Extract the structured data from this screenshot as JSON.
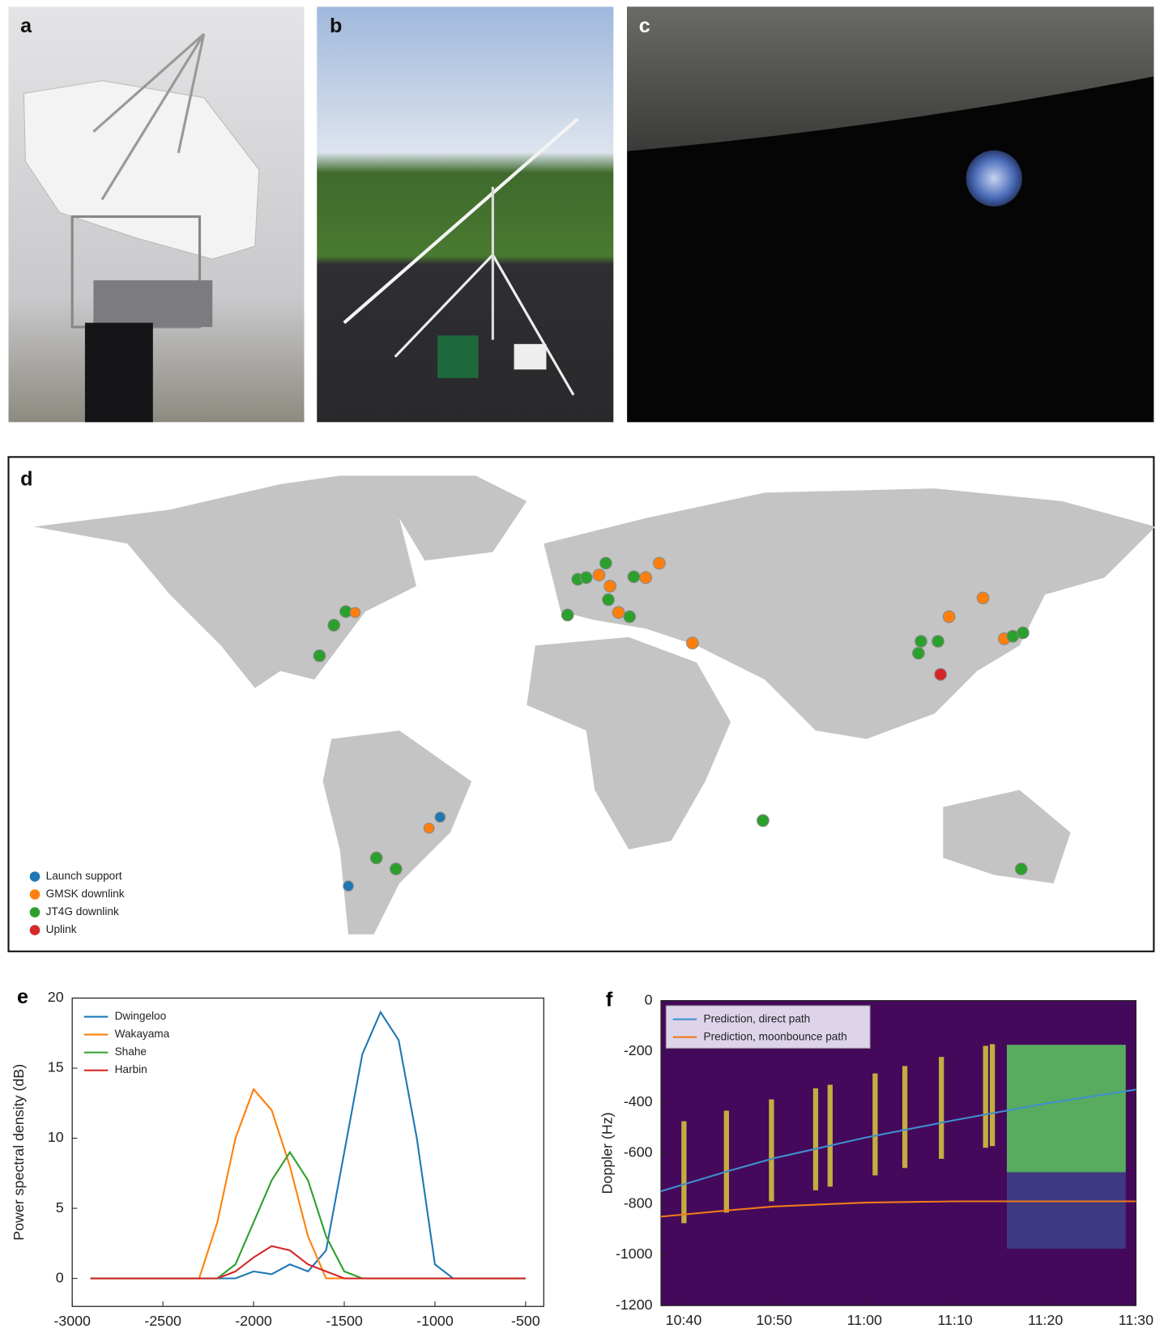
{
  "panel_labels": [
    "a",
    "b",
    "c",
    "d"
  ],
  "map_legend": [
    {
      "name": "Launch support",
      "color": "#1f77b4"
    },
    {
      "name": "GMSK downlink",
      "color": "#ff7f0e"
    },
    {
      "name": "JT4G downlink",
      "color": "#2ca02c"
    },
    {
      "name": "Uplink",
      "color": "#d62728"
    }
  ],
  "chart_data": [
    {
      "type": "line",
      "label": "e",
      "ylabel": "Power spectral density (dB)",
      "x": [
        -2900,
        -2800,
        -2700,
        -2600,
        -2500,
        -2400,
        -2300,
        -2200,
        -2100,
        -2000,
        -1900,
        -1800,
        -1700,
        -1600,
        -1500,
        -1400,
        -1300,
        -1200,
        -1100,
        -1000,
        -900,
        -800,
        -700,
        -600,
        -500
      ],
      "series": [
        {
          "name": "Dwingeloo",
          "color": "#1f77b4",
          "values": [
            0,
            0,
            0,
            0,
            0,
            0,
            0,
            0,
            0,
            0.5,
            0.3,
            1,
            0.5,
            2,
            9,
            16,
            19,
            17,
            10,
            1,
            0,
            0,
            0,
            0,
            0
          ]
        },
        {
          "name": "Wakayama",
          "color": "#ff7f0e",
          "values": [
            0,
            0,
            0,
            0,
            0,
            0,
            0,
            4,
            10,
            13.5,
            12,
            8,
            3,
            0,
            0,
            0,
            0,
            0,
            0,
            0,
            0,
            0,
            0,
            0,
            0
          ]
        },
        {
          "name": "Shahe",
          "color": "#2ca02c",
          "values": [
            0,
            0,
            0,
            0,
            0,
            0,
            0,
            0,
            1,
            4,
            7,
            9,
            7,
            3,
            0.5,
            0,
            0,
            0,
            0,
            0,
            0,
            0,
            0,
            0,
            0
          ]
        },
        {
          "name": "Harbin",
          "color": "#d62728",
          "values": [
            0,
            0,
            0,
            0,
            0,
            0,
            0,
            0,
            0.5,
            1.5,
            2.3,
            2,
            1,
            0.5,
            0,
            0,
            0,
            0,
            0,
            0,
            0,
            0,
            0,
            0,
            0
          ]
        }
      ],
      "xlim": [
        -3000,
        -400
      ],
      "xticks": [
        -3000,
        -2500,
        -2000,
        -1500,
        -1000,
        -500
      ],
      "ylim": [
        -2,
        20
      ],
      "yticks": [
        0,
        5,
        10,
        15,
        20
      ]
    },
    {
      "type": "line",
      "label": "f",
      "ylabel": "Doppler (Hz)",
      "background": "#44095a",
      "x": [
        637.5,
        645,
        650,
        660,
        670,
        680,
        690
      ],
      "series": [
        {
          "name": "Prediction, direct path",
          "color": "#3f8fd0",
          "values": [
            -750,
            -670,
            -620,
            -540,
            -470,
            -405,
            -350
          ]
        },
        {
          "name": "Prediction, moonbounce path",
          "color": "#f07a1a",
          "values": [
            -850,
            -825,
            -810,
            -795,
            -790,
            -790,
            -790
          ]
        }
      ],
      "xlim": [
        637.5,
        690
      ],
      "xticks": [
        {
          "value": 640,
          "label": "10:40"
        },
        {
          "value": 650,
          "label": "10:50"
        },
        {
          "value": 660,
          "label": "11:00"
        },
        {
          "value": 670,
          "label": "11:10"
        },
        {
          "value": 680,
          "label": "11:20"
        },
        {
          "value": 690,
          "label": "11:30"
        }
      ],
      "ylim": [
        -1200,
        0
      ],
      "yticks": [
        -1200,
        -1000,
        -800,
        -600,
        -400,
        -200,
        0
      ]
    }
  ]
}
